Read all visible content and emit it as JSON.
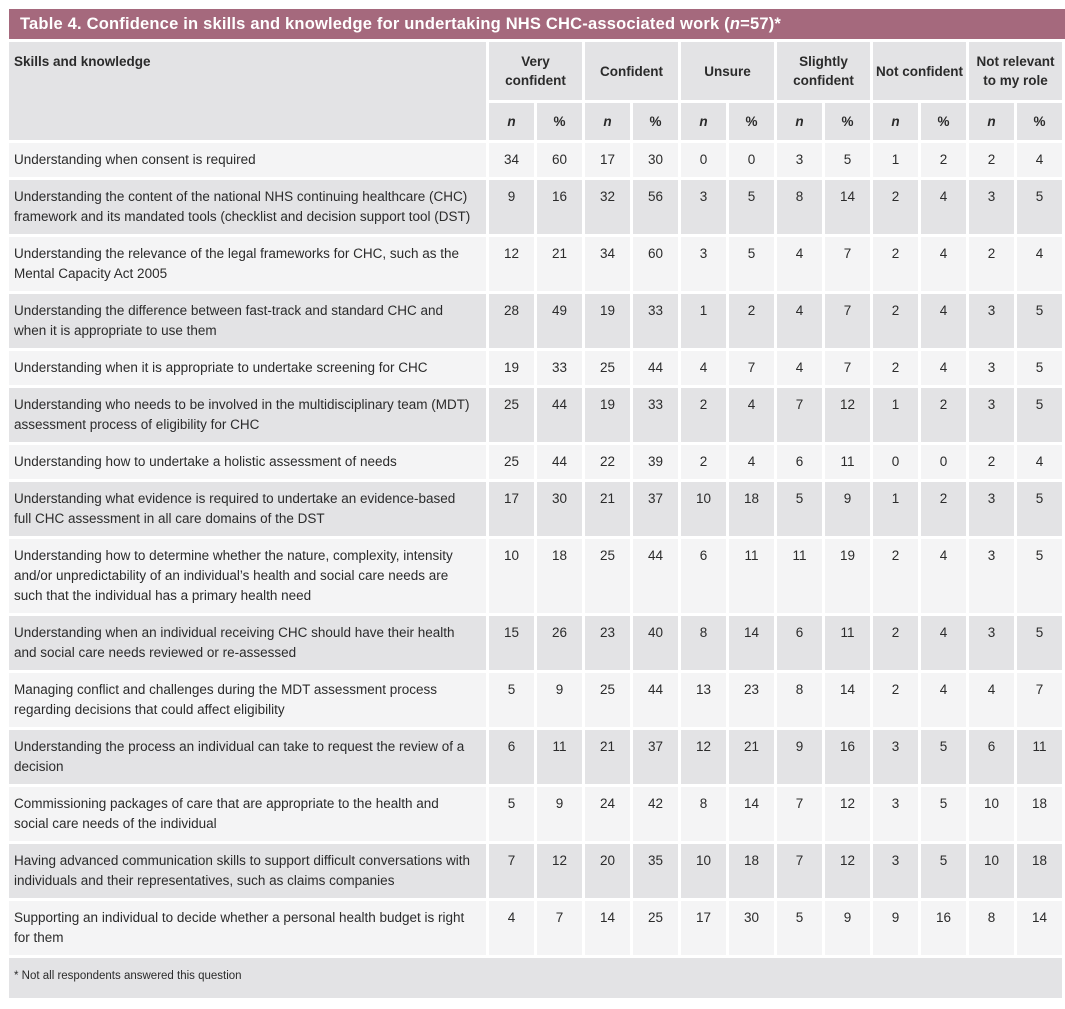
{
  "title": {
    "pre": "Table 4. Confidence in skills and knowledge for undertaking NHS CHC-associated work (",
    "italic_var": "n",
    "post": "=57)*"
  },
  "header": {
    "skills_label": "Skills and knowledge",
    "groups": [
      "Very confident",
      "Confident",
      "Unsure",
      "Slightly confident",
      "Not confident",
      "Not relevant to my role"
    ],
    "sub_n": "n",
    "sub_pct": "%"
  },
  "rows": [
    {
      "skill": "Understanding when consent is required",
      "values": [
        34,
        60,
        17,
        30,
        0,
        0,
        3,
        5,
        1,
        2,
        2,
        4
      ]
    },
    {
      "skill": "Understanding the content of the national NHS continuing healthcare (CHC) framework and its mandated tools (checklist and decision support tool (DST)",
      "values": [
        9,
        16,
        32,
        56,
        3,
        5,
        8,
        14,
        2,
        4,
        3,
        5
      ]
    },
    {
      "skill": "Understanding the relevance of the legal frameworks for CHC, such as the Mental Capacity Act 2005",
      "values": [
        12,
        21,
        34,
        60,
        3,
        5,
        4,
        7,
        2,
        4,
        2,
        4
      ]
    },
    {
      "skill": "Understanding the difference between fast-track and standard CHC and when it is appropriate to use them",
      "values": [
        28,
        49,
        19,
        33,
        1,
        2,
        4,
        7,
        2,
        4,
        3,
        5
      ]
    },
    {
      "skill": "Understanding when it is appropriate to undertake screening for CHC",
      "values": [
        19,
        33,
        25,
        44,
        4,
        7,
        4,
        7,
        2,
        4,
        3,
        5
      ]
    },
    {
      "skill": "Understanding who needs to be involved in the multidisciplinary team (MDT) assessment process of eligibility for CHC",
      "values": [
        25,
        44,
        19,
        33,
        2,
        4,
        7,
        12,
        1,
        2,
        3,
        5
      ]
    },
    {
      "skill": "Understanding how to undertake a holistic assessment of needs",
      "values": [
        25,
        44,
        22,
        39,
        2,
        4,
        6,
        11,
        0,
        0,
        2,
        4
      ]
    },
    {
      "skill": "Understanding what evidence is required to undertake an evidence-based full CHC assessment in all care domains of the DST",
      "values": [
        17,
        30,
        21,
        37,
        10,
        18,
        5,
        9,
        1,
        2,
        3,
        5
      ]
    },
    {
      "skill": "Understanding how to determine whether the nature, complexity, intensity and/or unpredictability of an individual’s health and social care needs are such that the individual has a primary health need",
      "values": [
        10,
        18,
        25,
        44,
        6,
        11,
        11,
        19,
        2,
        4,
        3,
        5
      ]
    },
    {
      "skill": "Understanding when an individual receiving CHC should have their health and social care needs reviewed or re-assessed",
      "values": [
        15,
        26,
        23,
        40,
        8,
        14,
        6,
        11,
        2,
        4,
        3,
        5
      ]
    },
    {
      "skill": "Managing conflict and challenges during the MDT assessment process regarding decisions that could affect eligibility",
      "values": [
        5,
        9,
        25,
        44,
        13,
        23,
        8,
        14,
        2,
        4,
        4,
        7
      ]
    },
    {
      "skill": "Understanding the process an individual can take to request the review of a decision",
      "values": [
        6,
        11,
        21,
        37,
        12,
        21,
        9,
        16,
        3,
        5,
        6,
        11
      ]
    },
    {
      "skill": "Commissioning packages of care that are appropriate to the health and social care needs of the individual",
      "values": [
        5,
        9,
        24,
        42,
        8,
        14,
        7,
        12,
        3,
        5,
        10,
        18
      ]
    },
    {
      "skill": "Having advanced communication skills to support difficult conversations with individuals and their representatives, such as claims companies",
      "values": [
        7,
        12,
        20,
        35,
        10,
        18,
        7,
        12,
        3,
        5,
        10,
        18
      ]
    },
    {
      "skill": "Supporting an individual to decide whether a personal health budget is right for them",
      "values": [
        4,
        7,
        14,
        25,
        17,
        30,
        5,
        9,
        9,
        16,
        8,
        14
      ]
    }
  ],
  "footnote": "* Not all respondents answered this question",
  "colors": {
    "title_bar": "#A5697D",
    "header_gray": "#E3E3E5",
    "row_light": "#F4F4F5",
    "row_dark": "#E3E3E5",
    "gap_white": "#FFFFFF",
    "text": "#2B2B2B",
    "title_text": "#FFFFFF"
  }
}
